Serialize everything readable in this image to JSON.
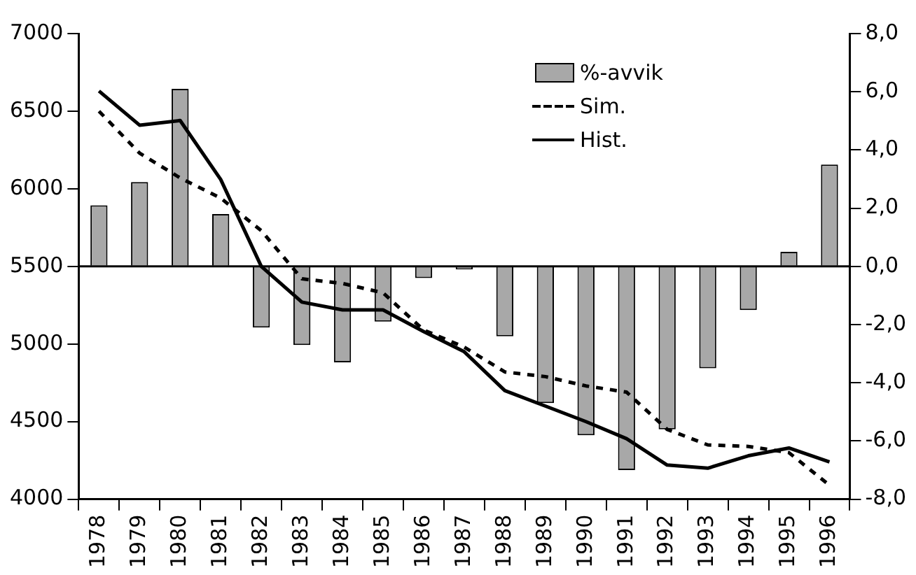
{
  "chart_data": {
    "type": "bar",
    "categories": [
      "1978",
      "1979",
      "1980",
      "1981",
      "1982",
      "1983",
      "1984",
      "1985",
      "1986",
      "1987",
      "1988",
      "1989",
      "1990",
      "1991",
      "1992",
      "1993",
      "1994",
      "1995",
      "1996"
    ],
    "series": [
      {
        "name": "%-avvik",
        "axis": "y2",
        "color": "#a8a8a8",
        "values": [
          2.1,
          2.9,
          6.1,
          1.8,
          -2.1,
          -2.7,
          -3.3,
          -1.9,
          -0.4,
          -0.1,
          -2.4,
          -4.7,
          -5.8,
          -7.0,
          -5.6,
          -3.5,
          -1.5,
          0.5,
          3.5
        ]
      },
      {
        "name": "Sim.",
        "type": "line",
        "line_style": "dashed",
        "color": "#000000",
        "values": [
          6500,
          6230,
          6070,
          5940,
          5730,
          5420,
          5390,
          5330,
          5090,
          4980,
          4820,
          4790,
          4730,
          4690,
          4450,
          4350,
          4340,
          4300,
          4090
        ]
      },
      {
        "name": "Hist.",
        "type": "line",
        "line_style": "solid",
        "color": "#000000",
        "values": [
          6630,
          6410,
          6440,
          6060,
          5500,
          5270,
          5220,
          5220,
          5080,
          4950,
          4700,
          4600,
          4500,
          4390,
          4220,
          4200,
          4280,
          4330,
          4240
        ]
      }
    ],
    "ylim": [
      4000,
      7000
    ],
    "yticks": [
      4000,
      4500,
      5000,
      5500,
      6000,
      6500,
      7000
    ],
    "y2lim": [
      -8,
      8
    ],
    "y2ticks": [
      {
        "value": -8,
        "label": "-8,0"
      },
      {
        "value": -6,
        "label": "-6,0"
      },
      {
        "value": -4,
        "label": "-4,0"
      },
      {
        "value": -2,
        "label": "-2,0"
      },
      {
        "value": 0,
        "label": "0,0"
      },
      {
        "value": 2,
        "label": "2,0"
      },
      {
        "value": 4,
        "label": "4,0"
      },
      {
        "value": 6,
        "label": "6,0"
      },
      {
        "value": 8,
        "label": "8,0"
      }
    ],
    "ref_lines": [
      {
        "axis": "y2",
        "value": 0
      }
    ],
    "grid": false,
    "legend": "top right",
    "marker": "none"
  }
}
